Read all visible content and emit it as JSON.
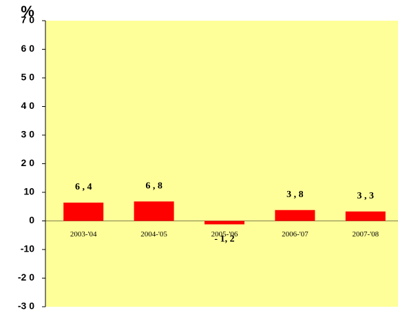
{
  "chart_data": {
    "type": "bar",
    "y_label": "%",
    "categories": [
      "2003-'04",
      "2004-'05",
      "2005-'06",
      "2006-'07",
      "2007-'08"
    ],
    "values": [
      6.4,
      6.8,
      -1.2,
      3.8,
      3.3
    ],
    "value_labels": [
      "6 , 4",
      "6 , 8",
      "- 1, 2",
      "3 , 8",
      "3 , 3"
    ],
    "color": "#ff0000",
    "background": "#ffff99",
    "ylim": [
      -30,
      70
    ],
    "yticks": [
      {
        "value": -30,
        "label": "-3 0"
      },
      {
        "value": -20,
        "label": "-2 0"
      },
      -10,
      0,
      10,
      {
        "value": 20,
        "label": "2 0"
      },
      {
        "value": 30,
        "label": "3 0"
      },
      {
        "value": 40,
        "label": "4 0"
      },
      {
        "value": 50,
        "label": "5 0"
      },
      {
        "value": 60,
        "label": "6 0"
      },
      {
        "value": 70,
        "label": "7 0"
      }
    ]
  }
}
